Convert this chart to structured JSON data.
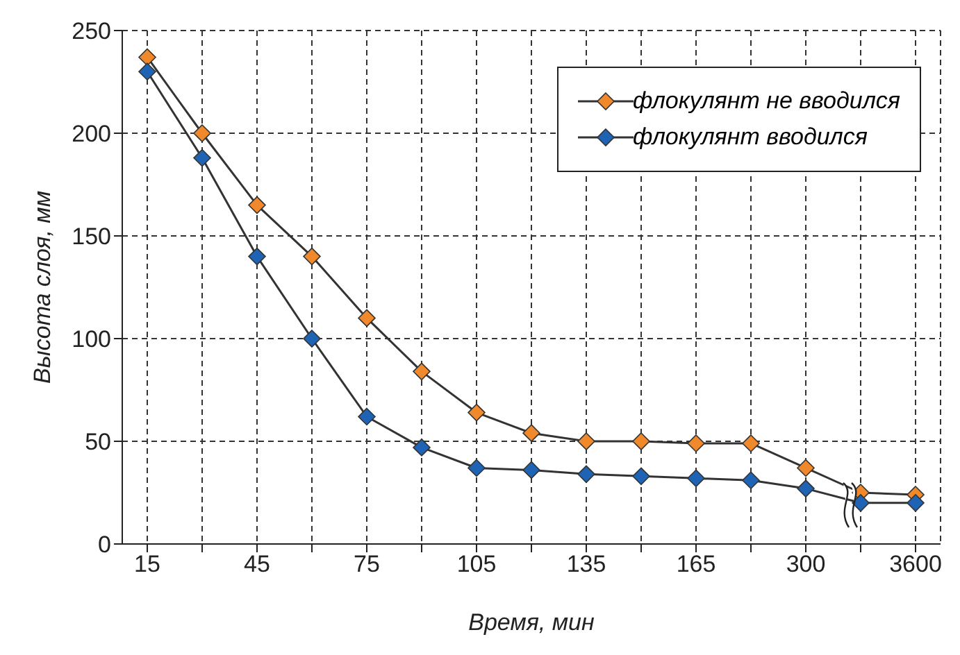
{
  "chart_data": {
    "type": "line",
    "xlabel": "Время, мин",
    "ylabel": "Высота слоя, мм",
    "categories": [
      "15",
      null,
      "45",
      null,
      "75",
      null,
      "105",
      null,
      "135",
      null,
      "165",
      null,
      "300",
      null,
      "3600"
    ],
    "series": [
      {
        "name": "флокулянт не вводился",
        "color": "#f0882c",
        "values": [
          237,
          200,
          165,
          140,
          110,
          84,
          64,
          54,
          50,
          50,
          49,
          49,
          37,
          25,
          24
        ]
      },
      {
        "name": "флокулянт вводился",
        "color": "#1f64b4",
        "values": [
          230,
          188,
          140,
          100,
          62,
          47,
          37,
          36,
          34,
          33,
          32,
          31,
          27,
          20,
          20
        ]
      }
    ],
    "ylim": [
      0,
      250
    ],
    "yticks": [
      0,
      50,
      100,
      150,
      200,
      250
    ],
    "grid": true,
    "legend": "top right",
    "marker": "diamond",
    "line_style": "solid"
  }
}
